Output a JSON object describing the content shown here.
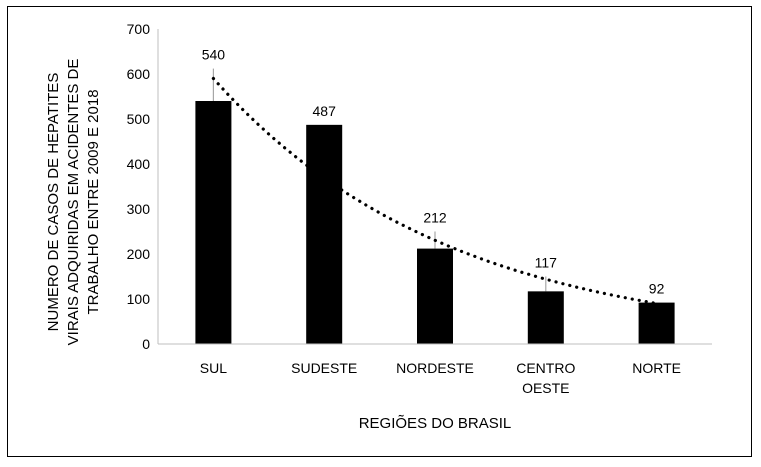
{
  "chart_data": {
    "type": "bar",
    "title": "",
    "xlabel": "REGIÕES DO BRASIL",
    "ylabel_lines": [
      "NUMERO DE CASOS DE HEPATITES",
      "VIRAIS ADQUIRIDAS EM ACIDENTES DE",
      "TRABALHO ENTRE 2009 E 2018"
    ],
    "categories": [
      [
        "SUL"
      ],
      [
        "SUDESTE"
      ],
      [
        "NORDESTE"
      ],
      [
        "CENTRO",
        "OESTE"
      ],
      [
        "NORTE"
      ]
    ],
    "values": [
      540,
      487,
      212,
      117,
      92
    ],
    "data_labels": [
      "540",
      "487",
      "212",
      "117",
      "92"
    ],
    "error_upper": [
      612,
      487,
      250,
      150,
      92
    ],
    "ylim": [
      0,
      700
    ],
    "yticks": [
      0,
      100,
      200,
      300,
      400,
      500,
      600,
      700
    ],
    "trendline": {
      "type": "exponential",
      "style": "dotted",
      "start_value": 590,
      "end_value": 90
    },
    "grid": false,
    "legend": "none",
    "colors": {
      "bar": "#000000",
      "trend": "#000000",
      "error_bar": "#a6a6a6",
      "axis": "#bfbfbf"
    }
  }
}
